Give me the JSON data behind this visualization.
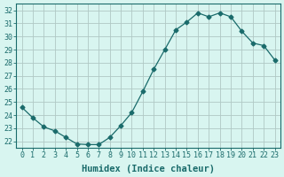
{
  "x": [
    0,
    1,
    2,
    3,
    4,
    5,
    6,
    7,
    8,
    9,
    10,
    11,
    12,
    13,
    14,
    15,
    16,
    17,
    18,
    19,
    20,
    21,
    22,
    23
  ],
  "y": [
    24.6,
    23.8,
    23.1,
    22.8,
    22.3,
    21.8,
    21.75,
    21.75,
    22.3,
    23.2,
    24.2,
    25.8,
    27.5,
    29.0,
    30.5,
    31.1,
    31.8,
    31.5,
    31.8,
    31.5,
    30.4,
    29.5,
    29.3,
    28.2
  ],
  "line_color": "#1a6b6b",
  "marker": "D",
  "marker_size": 2.5,
  "bg_color": "#d8f5f0",
  "grid_color": "#b0c8c4",
  "xlabel": "Humidex (Indice chaleur)",
  "xlim": [
    -0.5,
    23.5
  ],
  "ylim": [
    21.5,
    32.5
  ],
  "yticks": [
    22,
    23,
    24,
    25,
    26,
    27,
    28,
    29,
    30,
    31,
    32
  ],
  "xticks": [
    0,
    1,
    2,
    3,
    4,
    5,
    6,
    7,
    8,
    9,
    10,
    11,
    12,
    13,
    14,
    15,
    16,
    17,
    18,
    19,
    20,
    21,
    22,
    23
  ],
  "axis_color": "#1a6b6b",
  "tick_color": "#1a6b6b",
  "label_fontsize": 6,
  "xlabel_fontsize": 7.5
}
